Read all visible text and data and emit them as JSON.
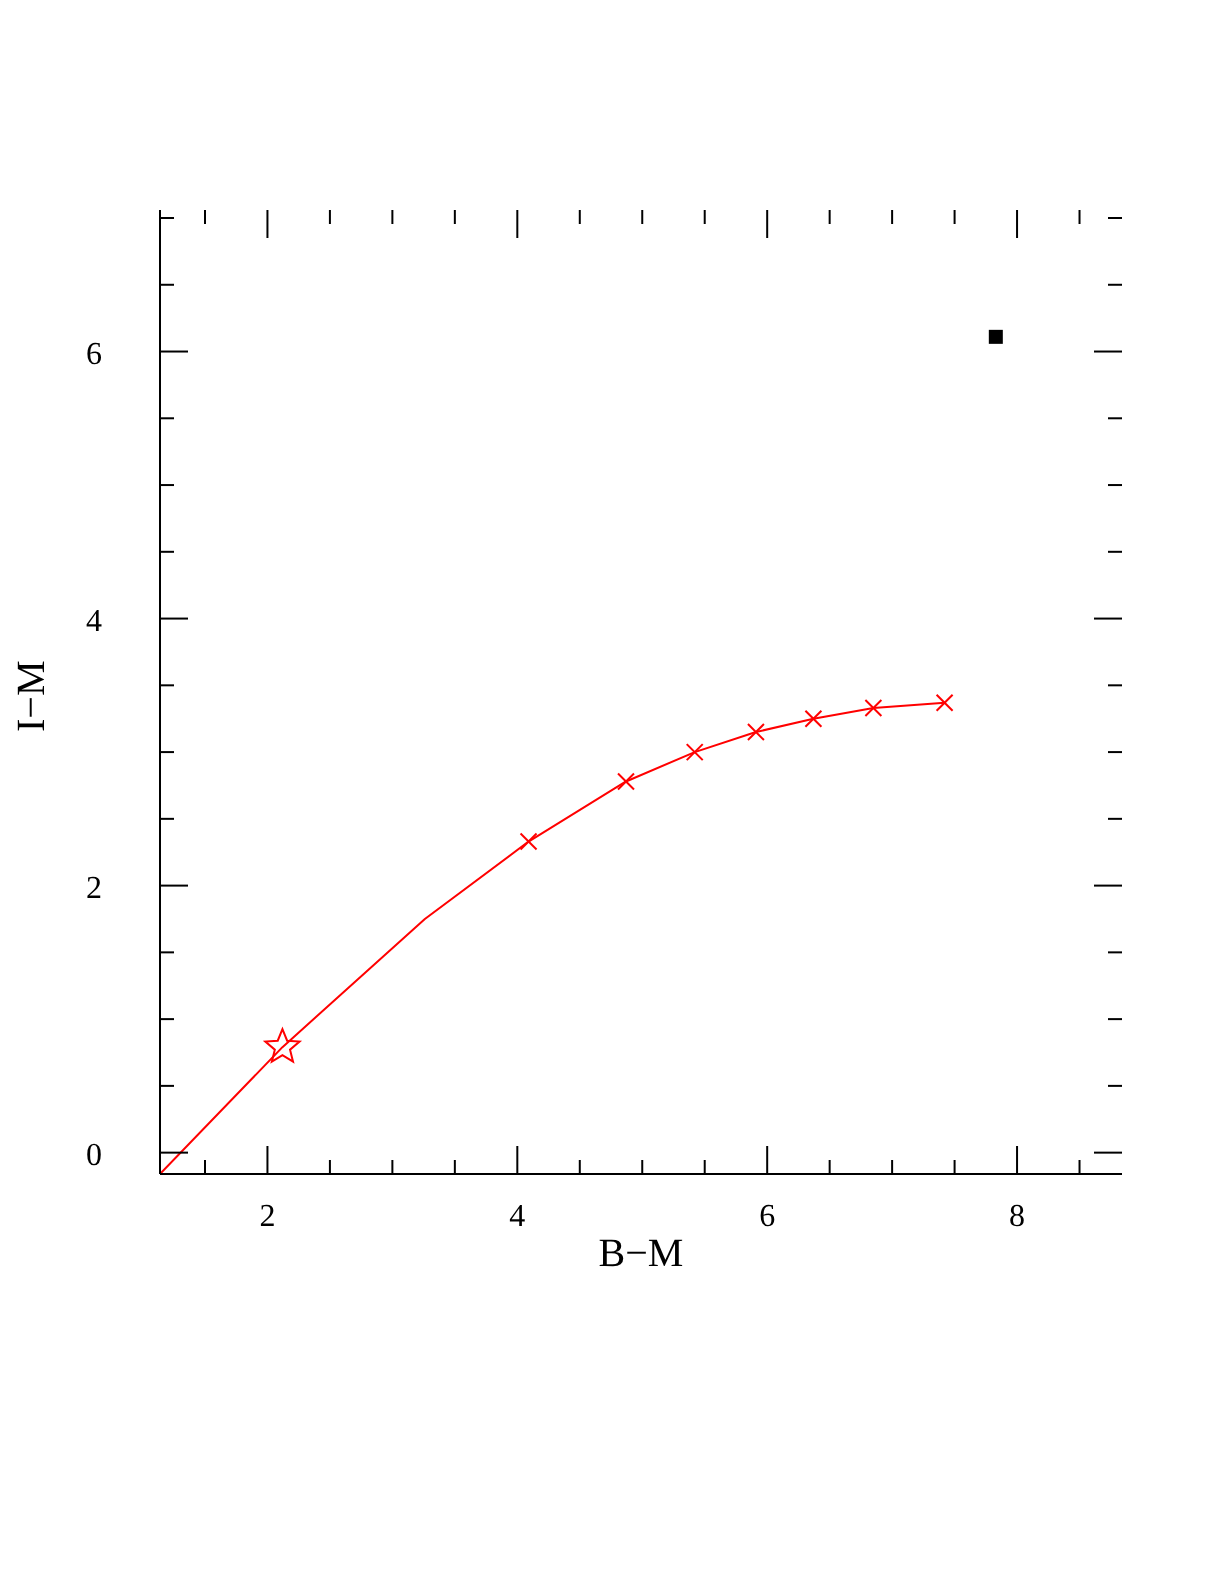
{
  "chart_data": {
    "type": "line",
    "xlabel": "B−M",
    "ylabel": "I−M",
    "xlim": [
      1.14,
      8.84
    ],
    "ylim": [
      -0.16,
      7.06
    ],
    "xticks": [
      {
        "value": 1.5,
        "label": null
      },
      2,
      {
        "value": 2.5,
        "label": null
      },
      {
        "value": 3,
        "label": null
      },
      {
        "value": 3.5,
        "label": null
      },
      4,
      {
        "value": 4.5,
        "label": null
      },
      {
        "value": 5,
        "label": null
      },
      {
        "value": 5.5,
        "label": null
      },
      6,
      {
        "value": 6.5,
        "label": null
      },
      {
        "value": 7,
        "label": null
      },
      {
        "value": 7.5,
        "label": null
      },
      8,
      {
        "value": 8.5,
        "label": null
      }
    ],
    "yticks": [
      0,
      {
        "value": 0.5,
        "label": null
      },
      {
        "value": 1,
        "label": null
      },
      {
        "value": 1.5,
        "label": null
      },
      2,
      {
        "value": 2.5,
        "label": null
      },
      {
        "value": 3,
        "label": null
      },
      {
        "value": 3.5,
        "label": null
      },
      4,
      {
        "value": 4.5,
        "label": null
      },
      {
        "value": 5,
        "label": null
      },
      {
        "value": 5.5,
        "label": null
      },
      6,
      {
        "value": 6.5,
        "label": null
      },
      {
        "value": 7,
        "label": null
      }
    ],
    "series": [
      {
        "color": "#ff0000",
        "x": [
          1.14,
          2.12,
          3.26,
          4.09,
          4.87,
          5.42,
          5.91,
          6.37,
          6.85,
          7.42
        ],
        "values": [
          -0.16,
          0.79,
          1.75,
          2.33,
          2.78,
          3.0,
          3.15,
          3.25,
          3.33,
          3.37
        ]
      },
      {
        "type": "scatter",
        "color": "#ff0000",
        "marker": "cross",
        "x": [
          4.09,
          4.87,
          5.42,
          5.91,
          6.37,
          6.85,
          7.42
        ],
        "values": [
          2.33,
          2.78,
          3.0,
          3.15,
          3.25,
          3.33,
          3.37
        ]
      },
      {
        "type": "scatter",
        "color": "#ff0000",
        "marker": "star",
        "x": [
          2.12
        ],
        "values": [
          0.79
        ]
      },
      {
        "type": "scatter",
        "color": "#000000",
        "marker": "square",
        "x": [
          7.83
        ],
        "values": [
          6.11
        ]
      }
    ]
  }
}
